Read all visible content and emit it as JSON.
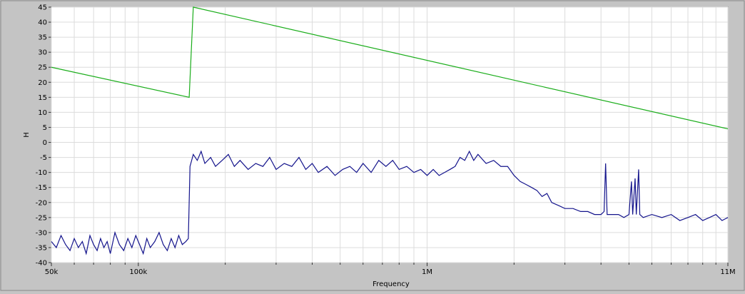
{
  "chart_data": {
    "type": "line",
    "xlabel": "Frequency",
    "ylabel": "H",
    "log_x": true,
    "grid": true,
    "xlim": [
      50000,
      11000000
    ],
    "ylim": [
      -40,
      45
    ],
    "xticks": [
      {
        "value": 50000,
        "label": "50k"
      },
      {
        "value": 100000,
        "label": "100k"
      },
      {
        "value": 1000000,
        "label": "1M"
      },
      {
        "value": 11000000,
        "label": "11M"
      }
    ],
    "xminor_ticks": [
      60000,
      70000,
      80000,
      90000,
      200000,
      300000,
      400000,
      500000,
      600000,
      700000,
      800000,
      900000,
      2000000,
      3000000,
      4000000,
      5000000,
      6000000,
      7000000,
      8000000,
      9000000,
      10000000
    ],
    "yticks": [
      45,
      40,
      35,
      30,
      25,
      20,
      15,
      10,
      5,
      0,
      -5,
      -10,
      -15,
      -20,
      -25,
      -30,
      -35,
      -40
    ],
    "series": [
      {
        "color": "#1aad1a",
        "x": [
          50000,
          150000,
          155000,
          11000000
        ],
        "values": [
          25,
          15,
          45,
          4.5
        ]
      },
      {
        "color": "#14148c",
        "x": [
          50000,
          52000,
          54000,
          56000,
          58000,
          60000,
          62000,
          64000,
          66000,
          68000,
          70000,
          72000,
          74000,
          76000,
          78000,
          80000,
          83000,
          86000,
          89000,
          92000,
          95000,
          98000,
          101000,
          104000,
          107000,
          110000,
          114000,
          118000,
          122000,
          126000,
          130000,
          134000,
          138000,
          142000,
          146000,
          149000,
          151000,
          155000,
          160000,
          165000,
          170000,
          178000,
          185000,
          195000,
          205000,
          215000,
          225000,
          240000,
          255000,
          270000,
          285000,
          300000,
          320000,
          340000,
          360000,
          380000,
          400000,
          420000,
          450000,
          480000,
          510000,
          540000,
          570000,
          600000,
          640000,
          680000,
          720000,
          760000,
          800000,
          850000,
          900000,
          950000,
          1000000,
          1050000,
          1100000,
          1150000,
          1200000,
          1250000,
          1300000,
          1350000,
          1400000,
          1450000,
          1500000,
          1600000,
          1700000,
          1800000,
          1900000,
          2000000,
          2100000,
          2200000,
          2300000,
          2400000,
          2500000,
          2600000,
          2700000,
          2850000,
          3000000,
          3200000,
          3400000,
          3600000,
          3800000,
          4000000,
          4100000,
          4150000,
          4200000,
          4400000,
          4600000,
          4800000,
          5000000,
          5100000,
          5150000,
          5250000,
          5300000,
          5400000,
          5450000,
          5600000,
          6000000,
          6500000,
          7000000,
          7500000,
          8000000,
          8500000,
          9000000,
          9500000,
          10000000,
          10500000,
          11000000
        ],
        "values": [
          -33,
          -35,
          -31,
          -34,
          -36,
          -32,
          -35,
          -33,
          -37,
          -31,
          -34,
          -36,
          -32,
          -35,
          -33,
          -37,
          -30,
          -34,
          -36,
          -32,
          -35,
          -31,
          -34,
          -37,
          -32,
          -35,
          -33,
          -30,
          -34,
          -36,
          -32,
          -35,
          -31,
          -34,
          -33,
          -32,
          -8,
          -4,
          -6,
          -3,
          -7,
          -5,
          -8,
          -6,
          -4,
          -8,
          -6,
          -9,
          -7,
          -8,
          -5,
          -9,
          -7,
          -8,
          -5,
          -9,
          -7,
          -10,
          -8,
          -11,
          -9,
          -8,
          -10,
          -7,
          -10,
          -6,
          -8,
          -6,
          -9,
          -8,
          -10,
          -9,
          -11,
          -9,
          -11,
          -10,
          -9,
          -8,
          -5,
          -6,
          -3,
          -6,
          -4,
          -7,
          -6,
          -8,
          -8,
          -11,
          -13,
          -14,
          -15,
          -16,
          -18,
          -17,
          -20,
          -21,
          -22,
          -22,
          -23,
          -23,
          -24,
          -24,
          -23,
          -7,
          -24,
          -24,
          -24,
          -25,
          -24,
          -13,
          -24,
          -12,
          -24,
          -9,
          -24,
          -25,
          -24,
          -25,
          -24,
          -26,
          -25,
          -24,
          -26,
          -25,
          -24,
          -26,
          -25
        ]
      }
    ]
  }
}
